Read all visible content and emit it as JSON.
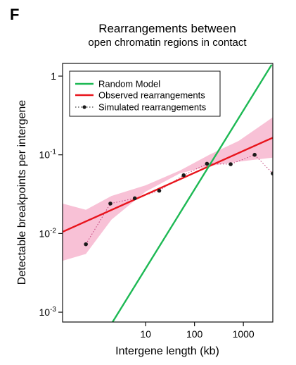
{
  "panel_label": "F",
  "chart_data": {
    "type": "line",
    "title": "Rearrangements between",
    "subtitle": "open chromatin regions in contact",
    "xlabel": "Intergene length (kb)",
    "ylabel": "Detectable breakpoints per intergene",
    "xscale": "log",
    "yscale": "log",
    "xlim": [
      0.2,
      4000
    ],
    "ylim": [
      0.00075,
      1.45
    ],
    "x_ticks": [
      {
        "value": 10,
        "label": "10"
      },
      {
        "value": 100,
        "label": "100"
      },
      {
        "value": 1000,
        "label": "1000"
      }
    ],
    "y_ticks": [
      {
        "value": 1,
        "label": "1",
        "exp": ""
      },
      {
        "value": 0.1,
        "label": "10",
        "exp": "-1"
      },
      {
        "value": 0.01,
        "label": "10",
        "exp": "-2"
      },
      {
        "value": 0.001,
        "label": "10",
        "exp": "-3"
      }
    ],
    "grid": false,
    "legend_position": "top-left",
    "series": [
      {
        "name": "Random Model",
        "color": "#1db954",
        "style": "solid",
        "x": [
          1.8,
          3800
        ],
        "y": [
          0.00064,
          1.4
        ]
      },
      {
        "name": "Observed rearrangements",
        "color": "#e8141c",
        "style": "solid",
        "band_color": "#f7b6cf",
        "x": [
          0.2,
          4000
        ],
        "y": [
          0.0105,
          0.165
        ],
        "band_lower": [
          0.0045,
          0.0055,
          0.015,
          0.034,
          0.058,
          0.072,
          0.082,
          0.092
        ],
        "band_upper": [
          0.024,
          0.02,
          0.03,
          0.041,
          0.063,
          0.1,
          0.15,
          0.3
        ],
        "band_x": [
          0.2,
          0.6,
          2,
          10,
          50,
          200,
          800,
          4000
        ]
      },
      {
        "name": "Simulated rearrangements",
        "color": "#1a1a1a",
        "style": "dotted-with-points",
        "x": [
          0.6,
          1.9,
          6,
          19,
          60,
          180,
          550,
          1700,
          4000
        ],
        "y": [
          0.0073,
          0.024,
          0.028,
          0.035,
          0.055,
          0.077,
          0.076,
          0.1,
          0.058
        ]
      }
    ]
  }
}
